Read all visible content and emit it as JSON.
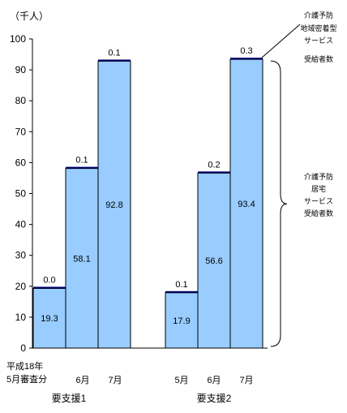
{
  "chart_data": {
    "type": "bar",
    "stacked": true,
    "unit_label": "（千人）",
    "ylim": [
      0,
      100
    ],
    "y_ticks": [
      "0",
      "10",
      "20",
      "30",
      "40",
      "50",
      "60",
      "70",
      "80",
      "90",
      "100"
    ],
    "grid": false,
    "groups": [
      {
        "name": "要支援1",
        "bars": [
          {
            "category_lines": [
              "平成18年",
              "5月審査分"
            ],
            "kyotaku": 19.3,
            "kyotaku_label": "19.3",
            "chiiki": 0.0,
            "chiiki_label": "0.0"
          },
          {
            "category_lines": [
              "6月"
            ],
            "kyotaku": 58.1,
            "kyotaku_label": "58.1",
            "chiiki": 0.1,
            "chiiki_label": "0.1"
          },
          {
            "category_lines": [
              "7月"
            ],
            "kyotaku": 92.8,
            "kyotaku_label": "92.8",
            "chiiki": 0.1,
            "chiiki_label": "0.1"
          }
        ]
      },
      {
        "name": "要支援2",
        "bars": [
          {
            "category_lines": [
              "5月"
            ],
            "kyotaku": 17.9,
            "kyotaku_label": "17.9",
            "chiiki": 0.1,
            "chiiki_label": "0.1"
          },
          {
            "category_lines": [
              "6月"
            ],
            "kyotaku": 56.6,
            "kyotaku_label": "56.6",
            "chiiki": 0.2,
            "chiiki_label": "0.2"
          },
          {
            "category_lines": [
              "7月"
            ],
            "kyotaku": 93.4,
            "kyotaku_label": "93.4",
            "chiiki": 0.3,
            "chiiki_label": "0.3"
          }
        ]
      }
    ],
    "annotations": {
      "chiiki": {
        "lines": [
          "介護予防",
          "地域密着型",
          "サービス",
          "受給者数"
        ]
      },
      "kyotaku": {
        "lines": [
          "介護予防",
          "居宅",
          "サービス",
          "受給者数"
        ]
      }
    },
    "colors": {
      "kyotaku": "#99CCFF",
      "chiiki": "#000066",
      "outline": "#000000"
    }
  }
}
